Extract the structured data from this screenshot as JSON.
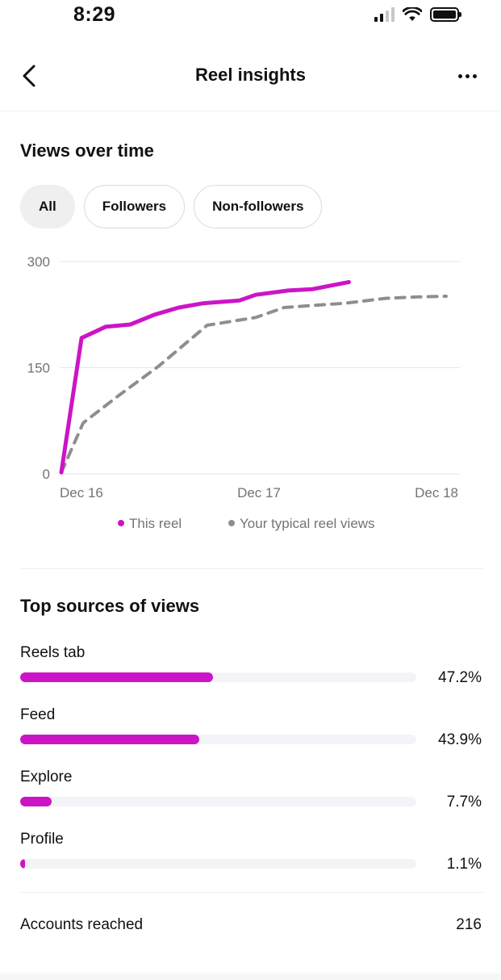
{
  "status_bar": {
    "time": "8:29"
  },
  "header": {
    "title": "Reel insights",
    "back_icon": "chevron-left-icon",
    "more_icon": "more-horizontal-icon"
  },
  "views_section": {
    "title": "Views over time",
    "filters": [
      {
        "label": "All",
        "active": true
      },
      {
        "label": "Followers",
        "active": false
      },
      {
        "label": "Non-followers",
        "active": false
      }
    ]
  },
  "chart_data": {
    "type": "line",
    "title": "Views over time",
    "xlabel": "",
    "ylabel": "",
    "y_ticks": [
      "0",
      "150",
      "300"
    ],
    "ylim": [
      0,
      300
    ],
    "x_ticks": [
      "Dec 16",
      "Dec 17",
      "Dec 18"
    ],
    "xlim": [
      0,
      48
    ],
    "x_unit": "hours since Dec 16",
    "grid": true,
    "legend_position": "bottom",
    "series": [
      {
        "name": "This reel",
        "color": "#cc14c7",
        "style": "solid",
        "x": [
          0,
          2.5,
          5.5,
          8.5,
          11.5,
          14.5,
          17.5,
          22,
          24,
          28,
          31,
          35.5
        ],
        "y": [
          2,
          192,
          208,
          211,
          225,
          235,
          241,
          245,
          253,
          259,
          261,
          271
        ]
      },
      {
        "name": "Your typical reel views",
        "color": "#8e8e8e",
        "style": "dashed",
        "x": [
          0,
          2.7,
          7,
          12,
          18,
          24,
          27.5,
          31,
          35,
          40,
          44,
          47.5
        ],
        "y": [
          2,
          72,
          110,
          152,
          210,
          221,
          235,
          238,
          241,
          248,
          250,
          251
        ]
      }
    ]
  },
  "sources_section": {
    "title": "Top sources of views",
    "items": [
      {
        "label": "Reels tab",
        "value": "47.2%",
        "fraction": 0.472
      },
      {
        "label": "Feed",
        "value": "43.9%",
        "fraction": 0.439
      },
      {
        "label": "Explore",
        "value": "7.7%",
        "fraction": 0.077
      },
      {
        "label": "Profile",
        "value": "1.1%",
        "fraction": 0.011
      }
    ]
  },
  "accounts_reached": {
    "label": "Accounts reached",
    "value": "216"
  }
}
